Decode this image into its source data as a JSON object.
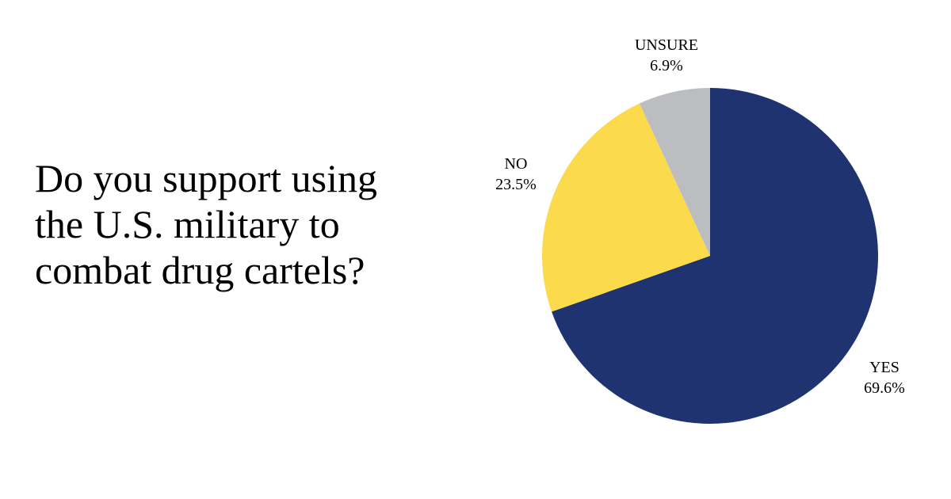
{
  "question": {
    "lines": [
      "Do you support using",
      "the U.S. military to",
      "combat drug cartels?"
    ]
  },
  "chart_data": {
    "type": "pie",
    "slices": [
      {
        "label": "YES",
        "value": 69.6,
        "value_label": "69.6%",
        "color": "#1e3370"
      },
      {
        "label": "NO",
        "value": 23.5,
        "value_label": "23.5%",
        "color": "#fbdb4b"
      },
      {
        "label": "UNSURE",
        "value": 6.9,
        "value_label": "6.9%",
        "color": "#bbbdc0"
      }
    ],
    "start": "12 o'clock",
    "direction": "clockwise",
    "legend": "none",
    "labels": "outside slices"
  }
}
